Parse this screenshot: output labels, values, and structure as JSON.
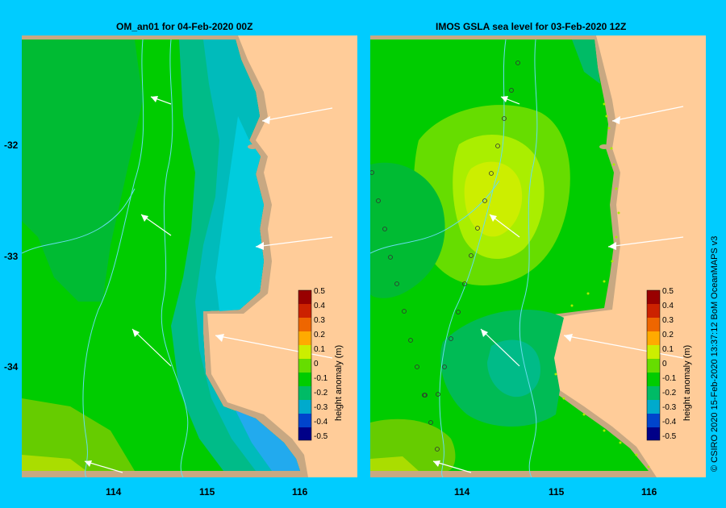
{
  "left_panel": {
    "title": "OM_an01  for 04-Feb-2020 00Z"
  },
  "right_panel": {
    "title": "IMOS GSLA sea level  for 03-Feb-2020 12Z"
  },
  "axes": {
    "lat_ticks": [
      "-32",
      "-33",
      "-34"
    ],
    "lon_ticks_left": [
      "114",
      "115",
      "116"
    ],
    "lon_ticks_right": [
      "114",
      "115",
      "116"
    ]
  },
  "colorbar": {
    "label": "height anomaly (m)",
    "ticks": [
      "0.5",
      "0.4",
      "0.3",
      "0.2",
      "0.1",
      "0",
      "-0.1",
      "-0.2",
      "-0.3",
      "-0.4",
      "-0.5"
    ],
    "colors": [
      "#990000",
      "#cc2200",
      "#ee6600",
      "#ffaa00",
      "#ccee00",
      "#66dd00",
      "#00cc00",
      "#00bb66",
      "#00aacc",
      "#0044cc",
      "#000088"
    ]
  },
  "credit": "© CSIRO 2020   15-Feb-2020 13:37:12 BoM OceanMAPS v3",
  "colors": {
    "background": "#00ccff",
    "land": "#ffcc99",
    "coast": "#c8a882",
    "ocean_green": "#00cc00"
  }
}
